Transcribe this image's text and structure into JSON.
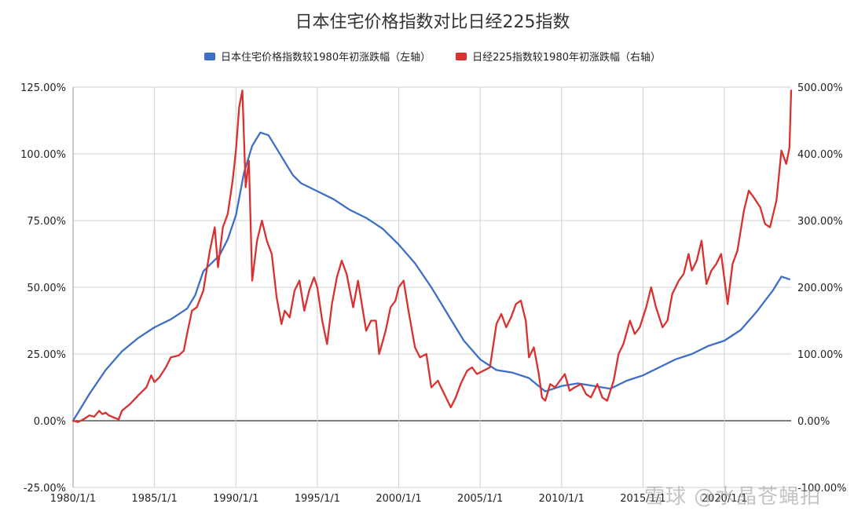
{
  "chart_data": {
    "type": "line",
    "title": "日本住宅价格指数对比日经225指数",
    "legend_position": "top",
    "grid": true,
    "x_range": [
      1980.0,
      2024.1
    ],
    "x_ticks": [
      "1980/1/1",
      "1985/1/1",
      "1990/1/1",
      "1995/1/1",
      "2000/1/1",
      "2005/1/1",
      "2010/1/1",
      "2015/1/1",
      "2020/1/1"
    ],
    "y_left": {
      "range": [
        -25,
        125
      ],
      "ticks": [
        "-25.00%",
        "0.00%",
        "25.00%",
        "50.00%",
        "75.00%",
        "100.00%",
        "125.00%"
      ]
    },
    "y_right": {
      "range": [
        -100,
        500
      ],
      "ticks": [
        "-100.00%",
        "0.00%",
        "100.00%",
        "200.00%",
        "300.00%",
        "400.00%",
        "500.00%"
      ]
    },
    "series": [
      {
        "name": "日本住宅价格指数较1980年初涨跌幅（左轴）",
        "axis": "left",
        "color": "#3d6fc7",
        "points": [
          [
            1980.0,
            0
          ],
          [
            1980.5,
            5
          ],
          [
            1981,
            10
          ],
          [
            1982,
            19
          ],
          [
            1983,
            26
          ],
          [
            1984,
            31
          ],
          [
            1985,
            35
          ],
          [
            1986,
            38
          ],
          [
            1987,
            42
          ],
          [
            1987.5,
            47
          ],
          [
            1988,
            56
          ],
          [
            1989,
            62
          ],
          [
            1989.5,
            68
          ],
          [
            1990,
            77
          ],
          [
            1990.5,
            93
          ],
          [
            1991,
            103
          ],
          [
            1991.5,
            108
          ],
          [
            1992,
            107
          ],
          [
            1992.5,
            102
          ],
          [
            1993,
            97
          ],
          [
            1993.5,
            92
          ],
          [
            1994,
            89
          ],
          [
            1995,
            86
          ],
          [
            1996,
            83
          ],
          [
            1997,
            79
          ],
          [
            1998,
            76
          ],
          [
            1999,
            72
          ],
          [
            2000,
            66
          ],
          [
            2001,
            59
          ],
          [
            2002,
            50
          ],
          [
            2003,
            40
          ],
          [
            2004,
            30
          ],
          [
            2005,
            23
          ],
          [
            2006,
            19
          ],
          [
            2007,
            18
          ],
          [
            2008,
            16
          ],
          [
            2009,
            11
          ],
          [
            2010,
            13
          ],
          [
            2011,
            14
          ],
          [
            2012,
            13
          ],
          [
            2013,
            12
          ],
          [
            2014,
            15
          ],
          [
            2015,
            17
          ],
          [
            2016,
            20
          ],
          [
            2017,
            23
          ],
          [
            2018,
            25
          ],
          [
            2019,
            28
          ],
          [
            2020,
            30
          ],
          [
            2021,
            34
          ],
          [
            2022,
            41
          ],
          [
            2023,
            49
          ],
          [
            2023.5,
            54
          ],
          [
            2024,
            53
          ]
        ]
      },
      {
        "name": "日经225指数较1980年初涨跌幅（右轴）",
        "axis": "right",
        "color": "#d93030",
        "points": [
          [
            1980.0,
            0
          ],
          [
            1980.3,
            -2
          ],
          [
            1980.7,
            3
          ],
          [
            1981,
            8
          ],
          [
            1981.3,
            6
          ],
          [
            1981.6,
            15
          ],
          [
            1981.8,
            10
          ],
          [
            1982,
            12
          ],
          [
            1982.2,
            8
          ],
          [
            1982.5,
            5
          ],
          [
            1982.8,
            2
          ],
          [
            1983,
            15
          ],
          [
            1983.5,
            25
          ],
          [
            1984,
            38
          ],
          [
            1984.5,
            50
          ],
          [
            1984.8,
            68
          ],
          [
            1985,
            58
          ],
          [
            1985.3,
            65
          ],
          [
            1985.7,
            80
          ],
          [
            1986,
            95
          ],
          [
            1986.5,
            98
          ],
          [
            1986.8,
            105
          ],
          [
            1987,
            130
          ],
          [
            1987.3,
            165
          ],
          [
            1987.6,
            170
          ],
          [
            1988,
            195
          ],
          [
            1988.4,
            255
          ],
          [
            1988.7,
            290
          ],
          [
            1988.9,
            230
          ],
          [
            1989.2,
            290
          ],
          [
            1989.5,
            310
          ],
          [
            1989.8,
            360
          ],
          [
            1990,
            405
          ],
          [
            1990.2,
            470
          ],
          [
            1990.4,
            495
          ],
          [
            1990.6,
            350
          ],
          [
            1990.8,
            390
          ],
          [
            1991,
            210
          ],
          [
            1991.3,
            270
          ],
          [
            1991.6,
            300
          ],
          [
            1991.9,
            270
          ],
          [
            1992.2,
            250
          ],
          [
            1992.5,
            185
          ],
          [
            1992.8,
            145
          ],
          [
            1993,
            165
          ],
          [
            1993.3,
            155
          ],
          [
            1993.6,
            195
          ],
          [
            1993.9,
            210
          ],
          [
            1994.2,
            165
          ],
          [
            1994.5,
            195
          ],
          [
            1994.8,
            215
          ],
          [
            1995,
            200
          ],
          [
            1995.3,
            150
          ],
          [
            1995.6,
            115
          ],
          [
            1995.9,
            175
          ],
          [
            1996.2,
            215
          ],
          [
            1996.5,
            240
          ],
          [
            1996.8,
            220
          ],
          [
            1997.2,
            170
          ],
          [
            1997.5,
            210
          ],
          [
            1997.8,
            165
          ],
          [
            1998,
            135
          ],
          [
            1998.3,
            150
          ],
          [
            1998.6,
            150
          ],
          [
            1998.8,
            100
          ],
          [
            1999.2,
            135
          ],
          [
            1999.5,
            170
          ],
          [
            1999.8,
            180
          ],
          [
            2000,
            200
          ],
          [
            2000.3,
            210
          ],
          [
            2000.6,
            165
          ],
          [
            2001,
            110
          ],
          [
            2001.3,
            95
          ],
          [
            2001.7,
            100
          ],
          [
            2002,
            50
          ],
          [
            2002.4,
            60
          ],
          [
            2002.8,
            40
          ],
          [
            2003.2,
            20
          ],
          [
            2003.5,
            35
          ],
          [
            2003.8,
            55
          ],
          [
            2004.2,
            75
          ],
          [
            2004.5,
            80
          ],
          [
            2004.8,
            70
          ],
          [
            2005.2,
            75
          ],
          [
            2005.6,
            80
          ],
          [
            2006,
            145
          ],
          [
            2006.3,
            160
          ],
          [
            2006.6,
            140
          ],
          [
            2006.9,
            155
          ],
          [
            2007.2,
            175
          ],
          [
            2007.5,
            180
          ],
          [
            2007.8,
            150
          ],
          [
            2008,
            95
          ],
          [
            2008.3,
            110
          ],
          [
            2008.6,
            70
          ],
          [
            2008.8,
            35
          ],
          [
            2009,
            30
          ],
          [
            2009.3,
            55
          ],
          [
            2009.6,
            50
          ],
          [
            2009.9,
            60
          ],
          [
            2010.2,
            70
          ],
          [
            2010.5,
            45
          ],
          [
            2010.8,
            50
          ],
          [
            2011.2,
            55
          ],
          [
            2011.5,
            40
          ],
          [
            2011.8,
            35
          ],
          [
            2012.2,
            55
          ],
          [
            2012.5,
            35
          ],
          [
            2012.8,
            30
          ],
          [
            2013.2,
            60
          ],
          [
            2013.5,
            100
          ],
          [
            2013.8,
            115
          ],
          [
            2014.2,
            150
          ],
          [
            2014.5,
            130
          ],
          [
            2014.8,
            140
          ],
          [
            2015.2,
            170
          ],
          [
            2015.5,
            200
          ],
          [
            2015.8,
            170
          ],
          [
            2016.2,
            140
          ],
          [
            2016.5,
            150
          ],
          [
            2016.8,
            190
          ],
          [
            2017.2,
            210
          ],
          [
            2017.5,
            220
          ],
          [
            2017.8,
            250
          ],
          [
            2018,
            225
          ],
          [
            2018.3,
            240
          ],
          [
            2018.6,
            270
          ],
          [
            2018.9,
            205
          ],
          [
            2019.2,
            225
          ],
          [
            2019.5,
            235
          ],
          [
            2019.8,
            250
          ],
          [
            2020.2,
            175
          ],
          [
            2020.5,
            235
          ],
          [
            2020.8,
            255
          ],
          [
            2021.2,
            315
          ],
          [
            2021.5,
            345
          ],
          [
            2021.8,
            335
          ],
          [
            2022.2,
            320
          ],
          [
            2022.5,
            295
          ],
          [
            2022.8,
            290
          ],
          [
            2023.2,
            330
          ],
          [
            2023.5,
            405
          ],
          [
            2023.8,
            385
          ],
          [
            2024,
            410
          ],
          [
            2024.1,
            495
          ]
        ]
      }
    ]
  },
  "watermark": "雪球 @水晶苍蝇拍"
}
